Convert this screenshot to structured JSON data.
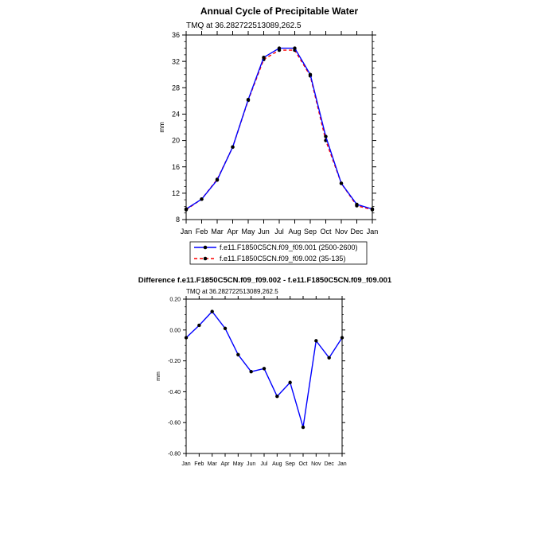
{
  "chart_data": [
    {
      "type": "line",
      "title": "Annual Cycle of Precipitable Water",
      "subtitle": "TMQ at 36.282722513089,262.5",
      "ylabel": "mm",
      "ylim": [
        8,
        36
      ],
      "yticks": [
        "8",
        "12",
        "16",
        "20",
        "24",
        "28",
        "32",
        "36"
      ],
      "yticks_values": [
        8,
        12,
        16,
        20,
        24,
        28,
        32,
        36
      ],
      "categories": [
        "Jan",
        "Feb",
        "Mar",
        "Apr",
        "May",
        "Jun",
        "Jul",
        "Aug",
        "Sep",
        "Oct",
        "Nov",
        "Dec",
        "Jan"
      ],
      "series": [
        {
          "name": "f.e11.F1850C5CN.f09_f09.001 (2500-2600)",
          "color": "#0000ff",
          "style": "solid",
          "values": [
            9.6,
            11.1,
            14.0,
            19.0,
            26.2,
            32.6,
            34.0,
            34.0,
            30.0,
            20.6,
            13.5,
            10.3,
            9.6
          ]
        },
        {
          "name": "f.e11.F1850C5CN.f09_f09.002 (35-135)",
          "color": "#ff0000",
          "style": "dashed",
          "values": [
            9.5,
            11.1,
            14.1,
            19.0,
            26.1,
            32.3,
            33.7,
            33.7,
            29.8,
            20.0,
            13.5,
            10.1,
            9.5
          ]
        }
      ],
      "legend": "bottom"
    },
    {
      "type": "line",
      "title": "Difference f.e11.F1850C5CN.f09_f09.002 - f.e11.F1850C5CN.f09_f09.001",
      "subtitle": "TMQ at 36.282722513089,262.5",
      "ylabel": "mm",
      "ylim": [
        -0.8,
        0.2
      ],
      "yticks": [
        "-0.80",
        "-0.60",
        "-0.40",
        "-0.20",
        "0.00",
        "0.20"
      ],
      "yticks_values": [
        -0.8,
        -0.6,
        -0.4,
        -0.2,
        0.0,
        0.2
      ],
      "categories": [
        "Jan",
        "Feb",
        "Mar",
        "Apr",
        "May",
        "Jun",
        "Jul",
        "Aug",
        "Sep",
        "Oct",
        "Nov",
        "Dec",
        "Jan"
      ],
      "series": [
        {
          "name": "difference",
          "color": "#0000ff",
          "style": "solid",
          "values": [
            -0.05,
            0.03,
            0.12,
            0.01,
            -0.16,
            -0.27,
            -0.25,
            -0.43,
            -0.34,
            -0.63,
            -0.07,
            -0.18,
            -0.05
          ]
        }
      ]
    }
  ]
}
